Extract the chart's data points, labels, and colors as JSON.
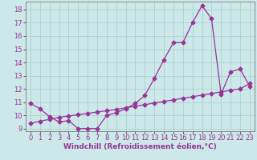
{
  "xlabel": "Windchill (Refroidissement éolien,°C)",
  "bg_color": "#cce8e8",
  "line_color": "#993399",
  "x_values": [
    0,
    1,
    2,
    3,
    4,
    5,
    6,
    7,
    8,
    9,
    10,
    11,
    12,
    13,
    14,
    15,
    16,
    17,
    18,
    19,
    20,
    21,
    22,
    23
  ],
  "y_curve": [
    10.9,
    10.5,
    9.9,
    9.5,
    9.6,
    9.0,
    9.0,
    9.0,
    10.0,
    10.2,
    10.5,
    10.9,
    11.5,
    12.8,
    14.2,
    15.5,
    15.5,
    17.0,
    18.3,
    17.3,
    11.6,
    13.3,
    13.5,
    12.2
  ],
  "y_linear": [
    9.4,
    9.55,
    9.7,
    9.85,
    9.95,
    10.05,
    10.15,
    10.25,
    10.35,
    10.45,
    10.57,
    10.69,
    10.81,
    10.93,
    11.05,
    11.17,
    11.29,
    11.41,
    11.53,
    11.65,
    11.77,
    11.89,
    12.01,
    12.4
  ],
  "xlim": [
    -0.5,
    23.5
  ],
  "ylim": [
    8.8,
    18.6
  ],
  "yticks": [
    9,
    10,
    11,
    12,
    13,
    14,
    15,
    16,
    17,
    18
  ],
  "xticks": [
    0,
    1,
    2,
    3,
    4,
    5,
    6,
    7,
    8,
    9,
    10,
    11,
    12,
    13,
    14,
    15,
    16,
    17,
    18,
    19,
    20,
    21,
    22,
    23
  ],
  "tick_fontsize": 6,
  "xlabel_fontsize": 6.5,
  "grid_color": "#aacccc",
  "marker": "D",
  "markersize": 2.5,
  "linewidth": 0.9
}
